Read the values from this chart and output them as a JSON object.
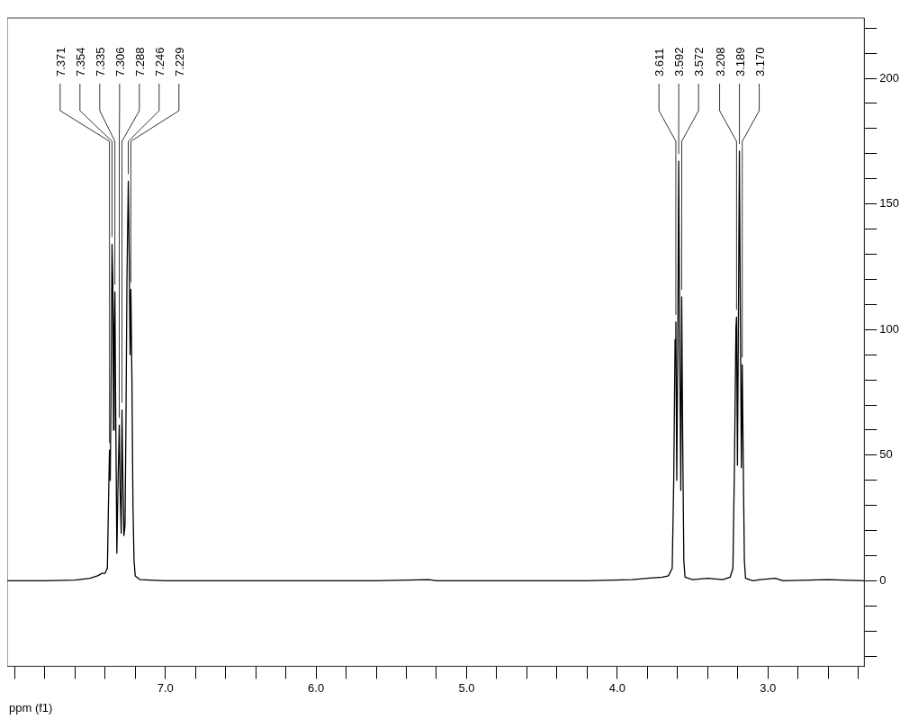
{
  "chart_data": {
    "type": "line",
    "xlabel": "ppm (f1)",
    "legend": false,
    "grid": false,
    "marker": "none",
    "line_style": "solid",
    "xlim": [
      8.05,
      2.36
    ],
    "xticks": [
      {
        "value": 8.0,
        "label": null
      },
      {
        "value": 7.8,
        "label": null
      },
      {
        "value": 7.6,
        "label": null
      },
      {
        "value": 7.4,
        "label": null
      },
      {
        "value": 7.2,
        "label": null
      },
      {
        "value": 7.0,
        "label": "7.0"
      },
      {
        "value": 6.8,
        "label": null
      },
      {
        "value": 6.6,
        "label": null
      },
      {
        "value": 6.4,
        "label": null
      },
      {
        "value": 6.2,
        "label": null
      },
      {
        "value": 6.0,
        "label": "6.0"
      },
      {
        "value": 5.8,
        "label": null
      },
      {
        "value": 5.6,
        "label": null
      },
      {
        "value": 5.4,
        "label": null
      },
      {
        "value": 5.2,
        "label": null
      },
      {
        "value": 5.0,
        "label": "5.0"
      },
      {
        "value": 4.8,
        "label": null
      },
      {
        "value": 4.6,
        "label": null
      },
      {
        "value": 4.4,
        "label": null
      },
      {
        "value": 4.2,
        "label": null
      },
      {
        "value": 4.0,
        "label": "4.0"
      },
      {
        "value": 3.8,
        "label": null
      },
      {
        "value": 3.6,
        "label": null
      },
      {
        "value": 3.4,
        "label": null
      },
      {
        "value": 3.2,
        "label": null
      },
      {
        "value": 3.0,
        "label": "3.0"
      },
      {
        "value": 2.8,
        "label": null
      },
      {
        "value": 2.6,
        "label": null
      },
      {
        "value": 2.4,
        "label": null
      }
    ],
    "ylim": [
      -34,
      224
    ],
    "yticks": [
      {
        "value": -30,
        "label": null
      },
      {
        "value": -20,
        "label": null
      },
      {
        "value": -10,
        "label": null
      },
      0,
      {
        "value": 10,
        "label": null
      },
      {
        "value": 20,
        "label": null
      },
      {
        "value": 30,
        "label": null
      },
      {
        "value": 40,
        "label": null
      },
      50,
      {
        "value": 60,
        "label": null
      },
      {
        "value": 70,
        "label": null
      },
      {
        "value": 80,
        "label": null
      },
      {
        "value": 90,
        "label": null
      },
      100,
      {
        "value": 110,
        "label": null
      },
      {
        "value": 120,
        "label": null
      },
      {
        "value": 130,
        "label": null
      },
      {
        "value": 140,
        "label": null
      },
      150,
      {
        "value": 160,
        "label": null
      },
      {
        "value": 170,
        "label": null
      },
      {
        "value": 180,
        "label": null
      },
      {
        "value": 190,
        "label": null
      },
      200,
      {
        "value": 210,
        "label": null
      },
      {
        "value": 220,
        "label": null
      }
    ],
    "series": [
      {
        "color": "#000000",
        "x": [
          8.05,
          7.8,
          7.6,
          7.5,
          7.45,
          7.42,
          7.4,
          7.385,
          7.378,
          7.371,
          7.366,
          7.36,
          7.354,
          7.349,
          7.344,
          7.34,
          7.335,
          7.33,
          7.322,
          7.314,
          7.306,
          7.3,
          7.293,
          7.288,
          7.282,
          7.275,
          7.268,
          7.262,
          7.255,
          7.246,
          7.24,
          7.234,
          7.229,
          7.222,
          7.215,
          7.208,
          7.2,
          7.17,
          7.0,
          6.5,
          6.0,
          5.6,
          5.25,
          5.2,
          4.8,
          4.2,
          3.9,
          3.8,
          3.7,
          3.66,
          3.635,
          3.625,
          3.616,
          3.611,
          3.605,
          3.598,
          3.592,
          3.586,
          3.578,
          3.572,
          3.566,
          3.558,
          3.55,
          3.5,
          3.4,
          3.3,
          3.25,
          3.232,
          3.222,
          3.212,
          3.208,
          3.202,
          3.195,
          3.189,
          3.183,
          3.176,
          3.17,
          3.164,
          3.156,
          3.148,
          3.1,
          3.05,
          2.95,
          2.9,
          2.6,
          2.36
        ],
        "values": [
          0,
          0,
          0.3,
          1,
          2,
          3,
          3,
          5,
          30,
          52,
          40,
          80,
          134,
          120,
          60,
          100,
          115,
          70,
          11,
          40,
          62,
          35,
          19,
          68,
          40,
          18,
          22,
          60,
          120,
          159,
          130,
          90,
          116,
          80,
          30,
          8,
          2,
          0.5,
          0,
          0,
          0,
          0,
          0.5,
          0,
          0,
          0,
          0.5,
          1,
          1.5,
          2,
          5,
          40,
          96,
          103,
          40,
          95,
          167,
          100,
          36,
          113,
          60,
          8,
          1.5,
          0.5,
          1,
          0.5,
          1.5,
          5,
          45,
          101,
          105,
          46,
          110,
          171,
          110,
          45,
          86,
          50,
          8,
          1,
          0,
          0.5,
          1,
          0,
          0.5,
          0
        ]
      }
    ],
    "annotations": [
      {
        "text": "7.371",
        "x": 7.371,
        "y": 52
      },
      {
        "text": "7.354",
        "x": 7.354,
        "y": 134
      },
      {
        "text": "7.335",
        "x": 7.335,
        "y": 115
      },
      {
        "text": "7.306",
        "x": 7.306,
        "y": 62
      },
      {
        "text": "7.288",
        "x": 7.288,
        "y": 68
      },
      {
        "text": "7.246",
        "x": 7.246,
        "y": 159
      },
      {
        "text": "7.229",
        "x": 7.229,
        "y": 116
      },
      {
        "text": "3.611",
        "x": 3.611,
        "y": 103
      },
      {
        "text": "3.592",
        "x": 3.592,
        "y": 167
      },
      {
        "text": "3.572",
        "x": 3.572,
        "y": 113
      },
      {
        "text": "3.208",
        "x": 3.208,
        "y": 105
      },
      {
        "text": "3.189",
        "x": 3.189,
        "y": 171
      },
      {
        "text": "3.170",
        "x": 3.17,
        "y": 86
      }
    ]
  }
}
